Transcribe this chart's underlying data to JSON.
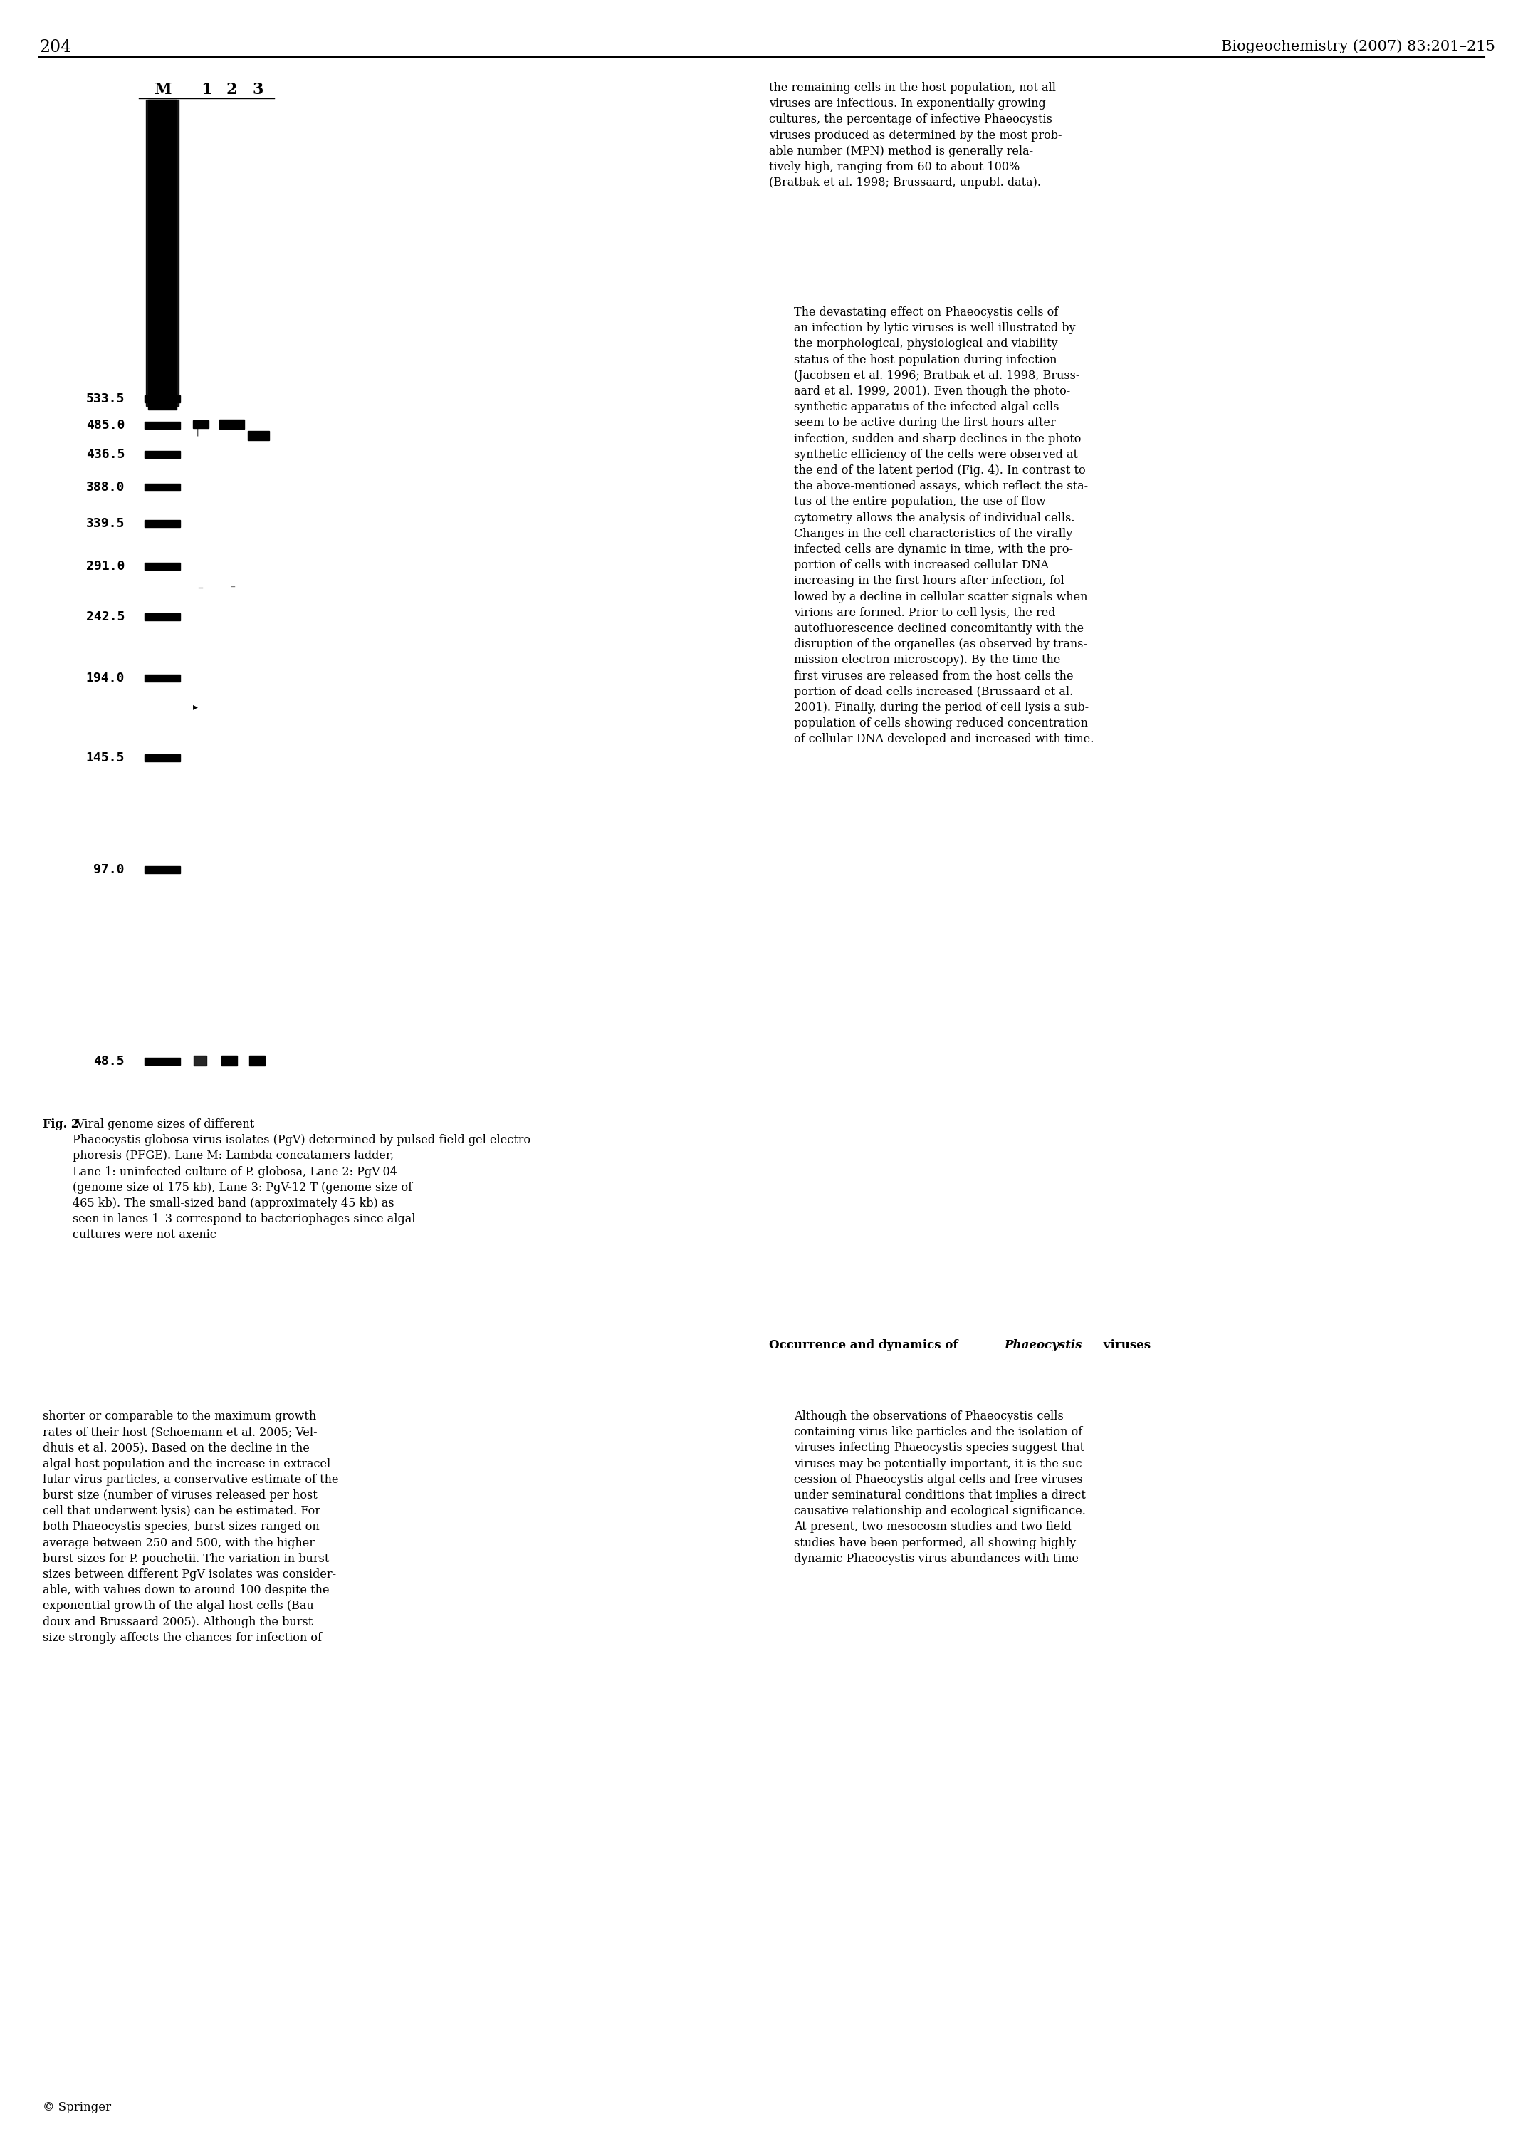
{
  "page_number": "204",
  "journal_header": "Biogeochemistry (2007) 83:201–215",
  "ladder_labels": [
    "M",
    "1",
    "2",
    "3"
  ],
  "size_markers": [
    533.5,
    485.0,
    436.5,
    388.0,
    339.5,
    291.0,
    242.5,
    194.0,
    145.5,
    97.0,
    48.5
  ],
  "fig_caption_bold": "Fig. 2",
  "fig_caption_text": " Viral genome sizes of different ",
  "fig_caption_italic": "Phaeocystis globosa",
  "fig_caption_rest": " virus isolates (PgV) determined by pulsed-field gel electrophoresis (PFGE). Lane M: Lambda concatamers ladder, Lane 1: uninfected culture of ",
  "fig_caption_italic2": "P. globosa",
  "fig_caption_rest2": ", Lane 2: PgV-04 (genome size of 175 kb), Lane 3: PgV-12 T (genome size of 465 kb). The small-sized band (approximately 45 kb) as seen in lanes 1–3 correspond to bacteriophages since algal cultures were not axenic",
  "right_col_paragraphs": [
    "the remaining cells in the host population, not all viruses are infectious. In exponentially growing cultures, the percentage of infective —Phaeocystis— viruses produced as determined by the most probable number (MPN) method is generally relatively high, ranging from 60 to about 100% (Bratbak et al. 1998; Brussaard, unpubl. data).",
    "The devastating effect on —Phaeocystis— cells of an infection by lytic viruses is well illustrated by the morphological, physiological and viability status of the host population during infection (Jacobsen et al. 1996; Bratbak et al. 1998, Brussaard et al. 1999, 2001). Even though the photosynthetic apparatus of the infected algal cells seem to be active during the first hours after infection, sudden and sharp declines in the photosynthetic efficiency of the cells were observed at the end of the latent period (Fig. 4). In contrast to the above-mentioned assays, which reflect the status of the entire population, the use of flow cytometry allows the analysis of individual cells. Changes in the cell characteristics of the virally infected cells are dynamic in time, with the proportion of cells with increased cellular DNA increasing in the first hours after infection, followed by a decline in cellular scatter signals when virions are formed. Prior to cell lysis, the red autofluorescence declined concomitantly with the disruption of the organelles (as observed by transmission electron microscopy). By the time the first viruses are released from the host cells the portion of dead cells increased (Brussaard et al. 2001). Finally, during the period of cell lysis a subpopulation of cells showing reduced concentration of cellular DNA developed and increased with time.",
    "Occurrence and dynamics of —Phaeocystis— viruses",
    "Although the observations of —Phaeocystis— cells containing virus-like particles and the isolation of viruses infecting —Phaeocystis— species suggest that viruses may be potentially important, it is the succession of —Phaeocystis— algal cells and free viruses under seminatural conditions that implies a direct causative relationship and ecological significance. At present, two mesocosm studies and two field studies have been performed, all showing highly dynamic —Phaeocystis— virus abundances with time"
  ],
  "left_col_paragraphs": [
    "shorter or comparable to the maximum growth rates of their host (Schoemann et al. 2005; Veldhuis et al. 2005). Based on the decline in the algal host population and the increase in extracellular virus particles, a conservative estimate of the burst size (number of viruses released per host cell that underwent lysis) can be estimated. For both —Phaeocystis— species, burst sizes ranged on average between 250 and 500, with the higher burst sizes for —P. pouchetii—. The variation in burst sizes between different PgV isolates was considerable, with values down to around 100 despite the exponential growth of the algal host cells (Baudoux and Brussaard 2005). Although the burst size strongly affects the chances for infection of"
  ],
  "springer_text": "© Springer"
}
